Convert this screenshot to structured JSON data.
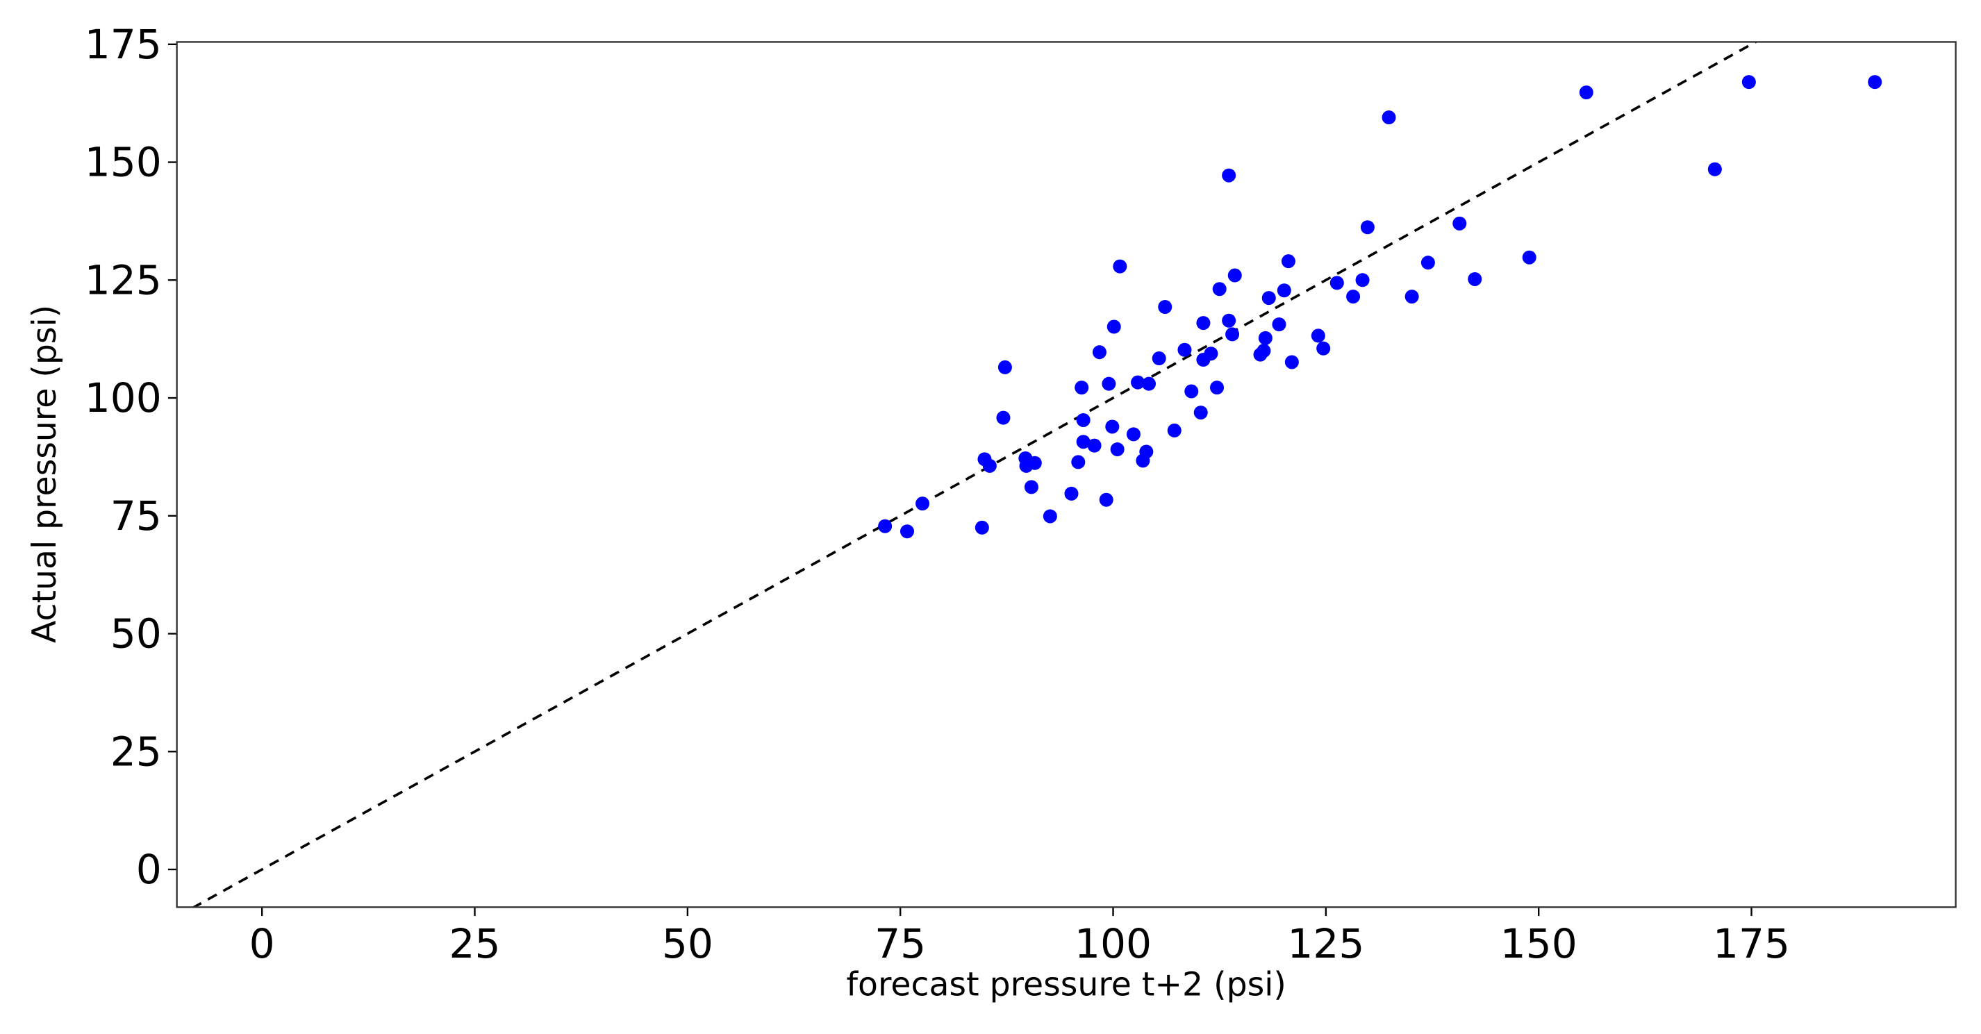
{
  "chart_data": {
    "type": "scatter",
    "x_label": "forecast pressure t+2 (psi)",
    "y_label": "Actual pressure (psi)",
    "color": "#0000ff",
    "reference_line_color": "#000000",
    "x": [
      73.2,
      75.8,
      77.6,
      84.6,
      84.9,
      85.5,
      87.3,
      87.1,
      89.7,
      89.8,
      90.8,
      90.4,
      92.6,
      95.1,
      95.9,
      96.3,
      96.5,
      96.5,
      97.8,
      98.4,
      99.2,
      99.5,
      99.9,
      100.1,
      100.5,
      100.8,
      102.4,
      102.9,
      103.5,
      103.9,
      104.2,
      105.4,
      106.1,
      107.2,
      108.4,
      109.2,
      110.3,
      110.6,
      110.6,
      111.5,
      112.2,
      112.5,
      113.6,
      113.6,
      114.0,
      114.3,
      117.3,
      117.7,
      117.9,
      118.3,
      119.5,
      120.1,
      120.6,
      121.0,
      124.1,
      124.7,
      126.3,
      128.2,
      129.3,
      129.9,
      132.4,
      135.1,
      137.0,
      140.7,
      142.5,
      148.9,
      155.6,
      170.7,
      174.7,
      189.5
    ],
    "values": [
      72.8,
      71.7,
      77.6,
      72.5,
      87.0,
      85.6,
      106.5,
      95.8,
      87.2,
      85.6,
      86.2,
      81.1,
      74.9,
      79.7,
      86.4,
      102.2,
      95.3,
      90.7,
      89.9,
      109.7,
      78.4,
      103.0,
      93.9,
      115.1,
      89.1,
      127.9,
      92.3,
      103.3,
      86.7,
      88.6,
      103.0,
      108.4,
      119.3,
      93.1,
      110.2,
      101.4,
      96.9,
      108.1,
      115.9,
      109.4,
      102.2,
      123.1,
      147.2,
      116.4,
      113.5,
      126.0,
      109.2,
      110.0,
      112.7,
      121.2,
      115.6,
      122.8,
      129.0,
      107.6,
      113.2,
      110.5,
      124.4,
      121.5,
      125.0,
      136.2,
      159.5,
      121.5,
      128.7,
      137.0,
      125.2,
      129.8,
      164.8,
      148.5,
      167.0,
      167.0
    ],
    "xlim": [
      -10,
      199
    ],
    "ylim": [
      -8,
      175.5
    ],
    "xticks": [
      0,
      25,
      50,
      75,
      100,
      125,
      150,
      175
    ],
    "yticks": [
      0,
      25,
      50,
      75,
      100,
      125,
      150,
      175
    ]
  }
}
